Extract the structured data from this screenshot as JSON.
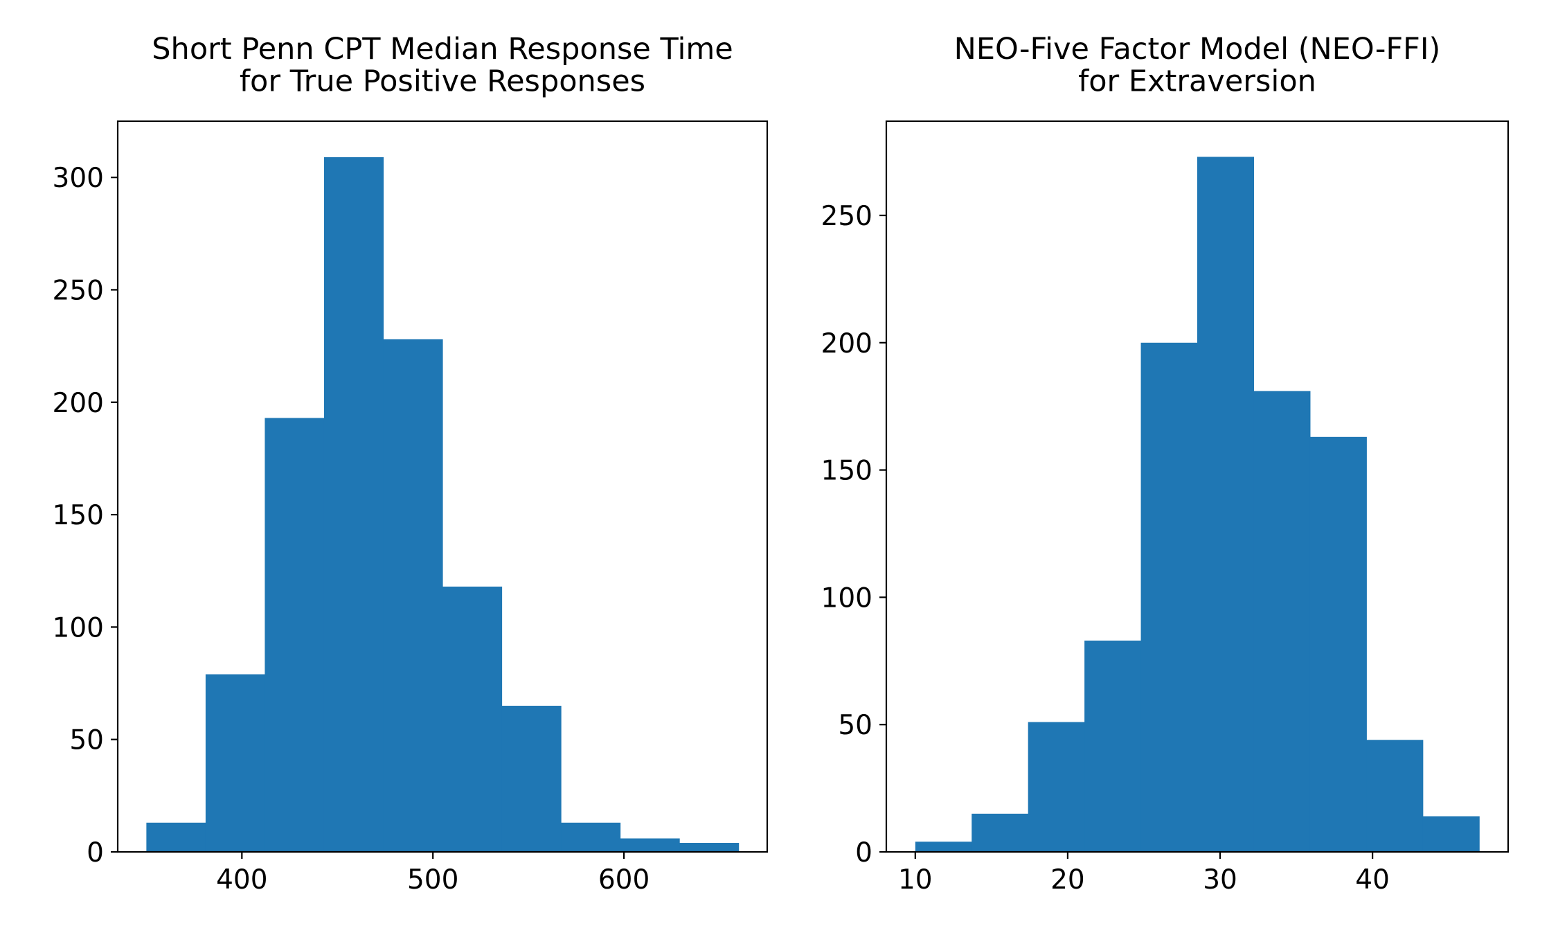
{
  "chart_data": [
    {
      "type": "bar",
      "title": "Short Penn CPT Median Response Time\nfor True Positive Responses",
      "xlabel": "",
      "ylabel": "",
      "xlim": [
        335,
        675
      ],
      "ylim": [
        0,
        325
      ],
      "xticks": [
        400,
        500,
        600
      ],
      "yticks": [
        0,
        50,
        100,
        150,
        200,
        250,
        300
      ],
      "bin_edges": [
        350,
        381,
        412,
        443,
        474,
        505,
        536,
        567,
        598,
        629,
        660
      ],
      "values": [
        13,
        79,
        193,
        309,
        228,
        118,
        65,
        13,
        6,
        4
      ],
      "color": "#1f77b4",
      "grid": false
    },
    {
      "type": "bar",
      "title": "NEO-Five Factor Model (NEO-FFI)\nfor Extraversion",
      "xlabel": "",
      "ylabel": "",
      "xlim": [
        8.1,
        48.9
      ],
      "ylim": [
        0,
        287
      ],
      "xticks": [
        10,
        20,
        30,
        40
      ],
      "yticks": [
        0,
        50,
        100,
        150,
        200,
        250
      ],
      "bin_edges": [
        10,
        13.7,
        17.4,
        21.1,
        24.8,
        28.5,
        32.2,
        35.9,
        39.6,
        43.3,
        47
      ],
      "values": [
        4,
        15,
        51,
        83,
        200,
        273,
        181,
        163,
        44,
        14
      ],
      "color": "#1f77b4",
      "grid": false
    }
  ]
}
